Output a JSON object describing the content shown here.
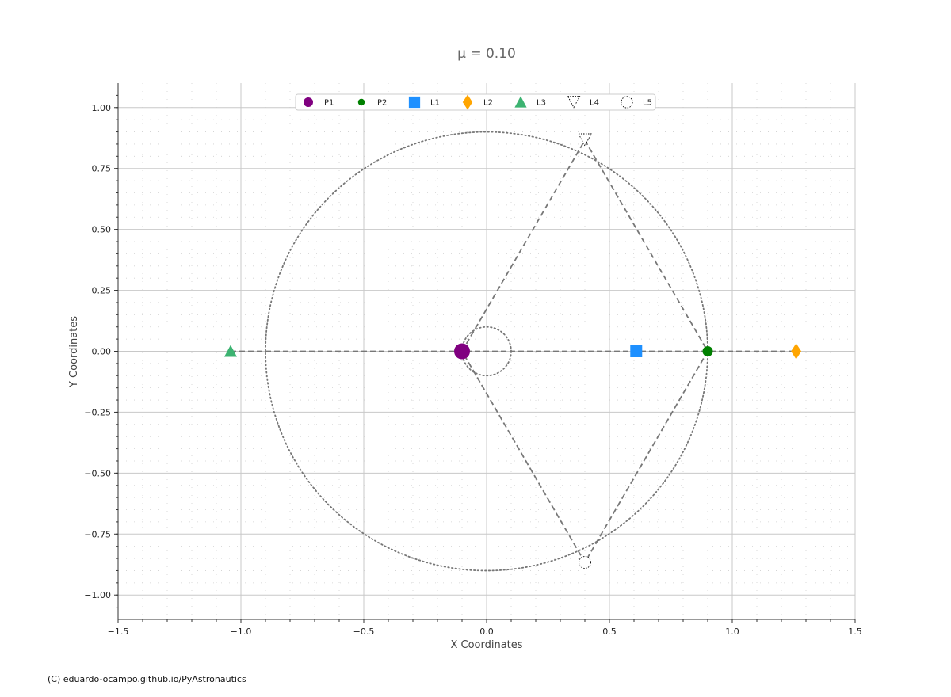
{
  "credit": "(C) eduardo-ocampo.github.io/PyAstronautics",
  "chart_data": {
    "type": "scatter",
    "title": "μ = 0.10",
    "xlabel": "X Coordinates",
    "ylabel": "Y Coordinates",
    "xlim": [
      -1.5,
      1.5
    ],
    "ylim": [
      -1.1,
      1.1
    ],
    "xticks": [
      -1.5,
      -1.0,
      -0.5,
      0.0,
      0.5,
      1.0,
      1.5
    ],
    "xtick_labels": [
      "−1.5",
      "−1.0",
      "−0.5",
      "0.0",
      "0.5",
      "1.0",
      "1.5"
    ],
    "yticks": [
      1.0,
      0.75,
      0.5,
      0.25,
      0.0,
      -0.25,
      -0.5,
      -0.75,
      -1.0
    ],
    "ytick_labels": [
      "1.00",
      "0.75",
      "0.50",
      "0.25",
      "0.00",
      "−0.25",
      "−0.50",
      "−0.75",
      "−1.00"
    ],
    "grid": true,
    "legend_position": "top-center",
    "mu": 0.1,
    "points": [
      {
        "name": "P1",
        "x": -0.1,
        "y": 0.0,
        "marker": "circle-large",
        "color": "#800080"
      },
      {
        "name": "P2",
        "x": 0.9,
        "y": 0.0,
        "marker": "circle",
        "color": "#008000"
      },
      {
        "name": "L1",
        "x": 0.609,
        "y": 0.0,
        "marker": "square",
        "color": "#1e90ff"
      },
      {
        "name": "L2",
        "x": 1.26,
        "y": 0.0,
        "marker": "diamond",
        "color": "#ffa500"
      },
      {
        "name": "L3",
        "x": -1.042,
        "y": 0.0,
        "marker": "triangle-up",
        "color": "#3cb371"
      },
      {
        "name": "L4",
        "x": 0.4,
        "y": 0.866,
        "marker": "triangle-down-open",
        "color": "#000000"
      },
      {
        "name": "L5",
        "x": 0.4,
        "y": -0.866,
        "marker": "circle-open",
        "color": "#000000"
      }
    ],
    "orbits": [
      {
        "center": [
          0.0,
          0.0
        ],
        "radius": 0.9,
        "style": "dotted"
      },
      {
        "center": [
          0.0,
          0.0
        ],
        "radius": 0.1,
        "style": "dotted"
      }
    ],
    "dashed_lines": [
      {
        "x": [
          -1.042,
          1.26
        ],
        "y": [
          0.0,
          0.0
        ]
      },
      {
        "x": [
          -0.1,
          0.4,
          0.9,
          0.4,
          -0.1
        ],
        "y": [
          0.0,
          0.866,
          0.0,
          -0.866,
          0.0
        ]
      }
    ]
  }
}
